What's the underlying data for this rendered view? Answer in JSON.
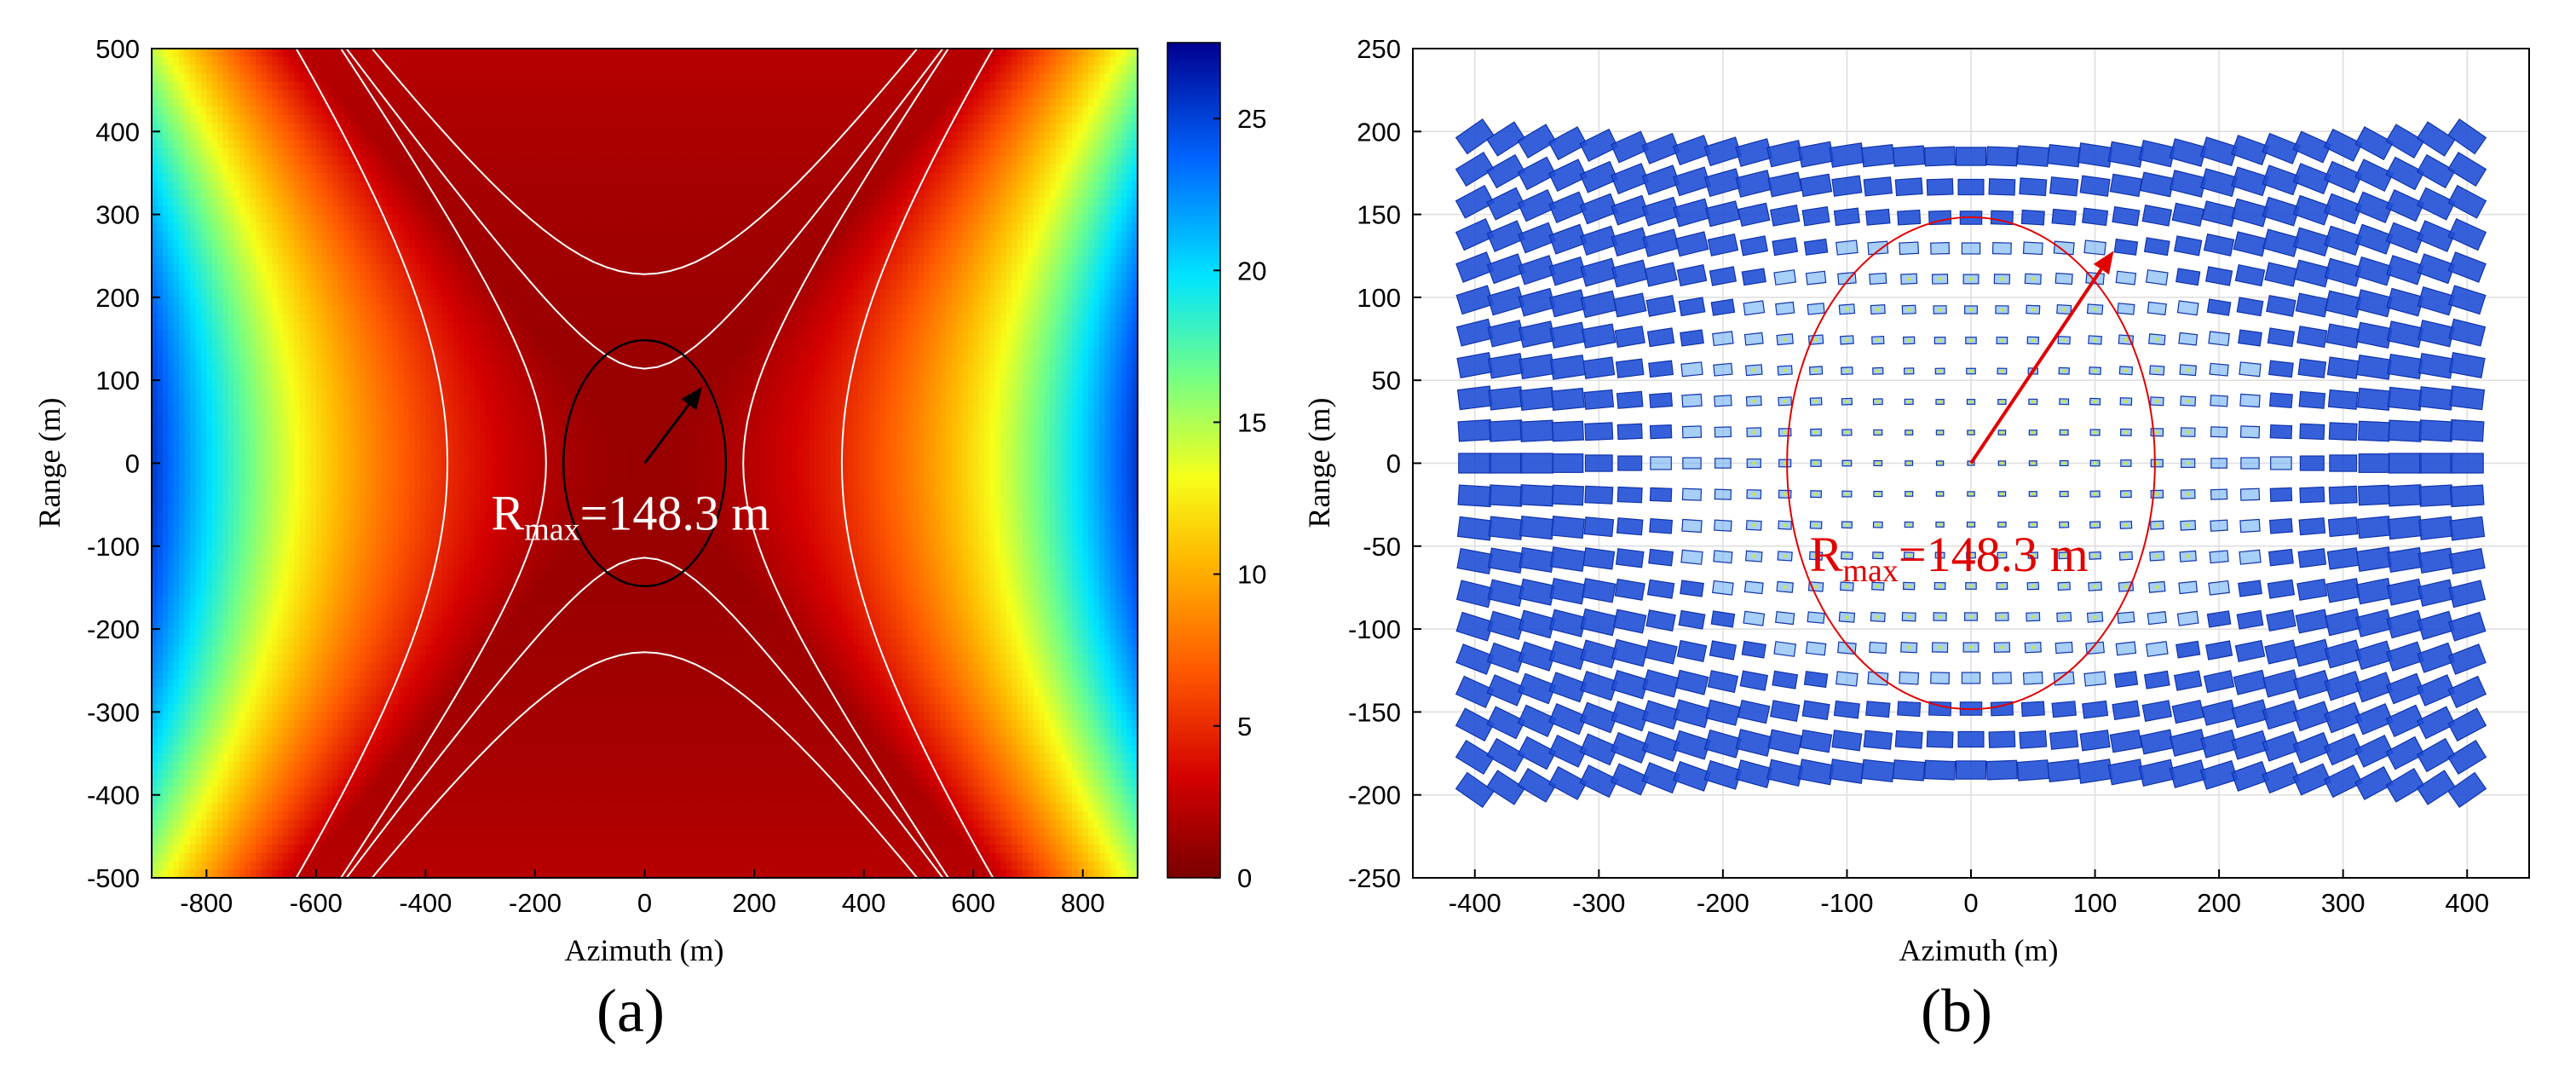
{
  "chart_data": [
    {
      "id": "a",
      "type": "heatmap",
      "title": "",
      "panel_label": "(a)",
      "xlabel": "Azimuth (m)",
      "ylabel": "Range (m)",
      "xlim": [
        -900,
        900
      ],
      "ylim": [
        -500,
        500
      ],
      "xticks": [
        -800,
        -600,
        -400,
        -200,
        0,
        200,
        400,
        600,
        800
      ],
      "yticks": [
        -500,
        -400,
        -300,
        -200,
        -100,
        0,
        100,
        200,
        300,
        400,
        500
      ],
      "colorbar": {
        "min": 0,
        "max": 27.5,
        "ticks": [
          0,
          5,
          10,
          15,
          20,
          25
        ],
        "colormap": "jet-reversed"
      },
      "field_model": "value grows with squared azimuth minus scaled squared range (hyperbolic pattern), min at center axes",
      "contour_levels": [
        1.2,
        2.4
      ],
      "circle": {
        "cx": 0,
        "cy": 0,
        "radius_label_m": 148.3,
        "rx": 148.3,
        "ry": 148.3
      },
      "arrow": {
        "from": [
          0,
          0
        ],
        "to": [
          105,
          92
        ],
        "color": "#000000"
      },
      "annotation": {
        "main": "R",
        "sub": "max",
        "rest": "=148.3 m",
        "color": "#ffffff",
        "at": [
          -280,
          -80
        ]
      }
    },
    {
      "id": "b",
      "type": "scatter",
      "title": "",
      "panel_label": "(b)",
      "xlabel": "Azimuth (m)",
      "ylabel": "Range (m)",
      "xlim": [
        -450,
        450
      ],
      "ylim": [
        -250,
        250
      ],
      "xticks": [
        -400,
        -300,
        -200,
        -100,
        0,
        100,
        200,
        300,
        400
      ],
      "yticks": [
        -250,
        -200,
        -150,
        -100,
        -50,
        0,
        50,
        100,
        150,
        200,
        250
      ],
      "grid": true,
      "point_spread": {
        "x_spacing": 25,
        "y_spacing": 18.5,
        "x_range": [
          -400,
          400
        ],
        "y_range": [
          -185,
          185
        ],
        "color": "#1f4fd6"
      },
      "circle": {
        "cx": 0,
        "cy": 0,
        "radius_label_m": 148.3,
        "rx": 148.3,
        "ry": 148.3,
        "color": "#e00000"
      },
      "arrow": {
        "from": [
          0,
          0
        ],
        "to": [
          115,
          128
        ],
        "color": "#e00000"
      },
      "annotation": {
        "main": "R",
        "sub": "max",
        "rest": "=148.3 m",
        "color": "#e00000",
        "at": [
          -130,
          -65
        ]
      }
    }
  ]
}
